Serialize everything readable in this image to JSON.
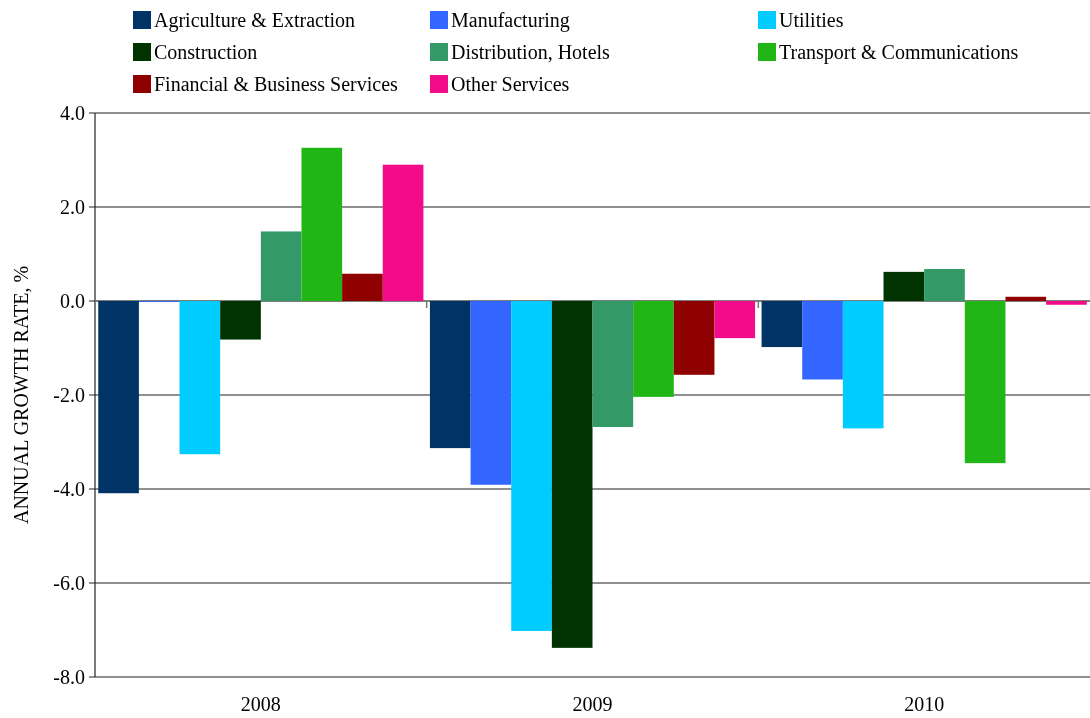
{
  "chart_data": {
    "type": "bar",
    "ylabel": "ANNUAL GROWTH RATE, %",
    "categories": [
      "2008",
      "2009",
      "2010"
    ],
    "ylim": [
      -8,
      4
    ],
    "yticks": [
      {
        "value": -8,
        "label": "-8.0"
      },
      {
        "value": -6,
        "label": "-6.0"
      },
      {
        "value": -4,
        "label": "-4.0"
      },
      {
        "value": -2,
        "label": "-2.0"
      },
      {
        "value": 0,
        "label": "0.0"
      },
      {
        "value": 2,
        "label": "2.0"
      },
      {
        "value": 4,
        "label": "4.0"
      }
    ],
    "grid": "y",
    "legend": "top",
    "series": [
      {
        "name": "Agriculture & Extraction",
        "color": "#003366",
        "values": [
          -4.09,
          -3.13,
          -0.98
        ]
      },
      {
        "name": "Manufacturing",
        "color": "#3366ff",
        "values": [
          -0.02,
          -3.91,
          -1.67
        ]
      },
      {
        "name": "Utilities",
        "color": "#00ccff",
        "values": [
          -3.26,
          -7.02,
          -2.71
        ]
      },
      {
        "name": "Construction",
        "color": "#003300",
        "values": [
          -0.82,
          -7.38,
          0.62
        ]
      },
      {
        "name": "Distribution, Hotels",
        "color": "#339966",
        "values": [
          1.48,
          -2.68,
          0.68
        ]
      },
      {
        "name": "Transport & Communications",
        "color": "#21b616",
        "values": [
          3.26,
          -2.04,
          -3.45
        ]
      },
      {
        "name": "Financial & Business Services",
        "color": "#8f0000",
        "values": [
          0.58,
          -1.57,
          0.09
        ]
      },
      {
        "name": "Other Services",
        "color": "#f20c8a",
        "values": [
          2.9,
          -0.79,
          -0.08
        ]
      }
    ]
  }
}
